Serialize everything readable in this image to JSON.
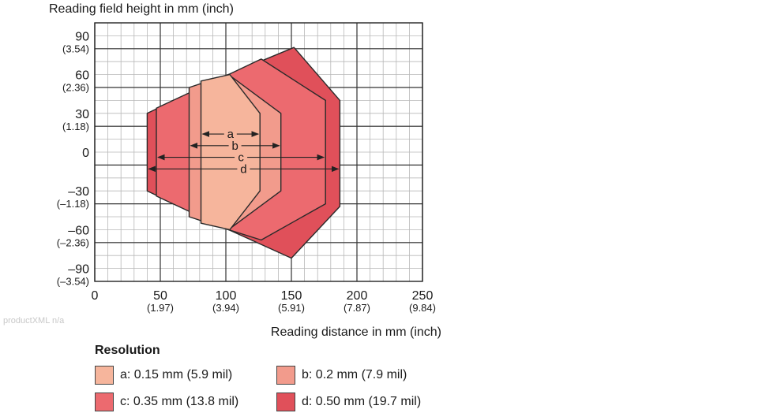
{
  "chart_data": {
    "type": "area",
    "ylabel": "Reading field height in mm (inch)",
    "xlabel": "Reading distance in mm (inch)",
    "xlim": [
      0,
      250
    ],
    "ylim": [
      -100,
      100
    ],
    "grid": true,
    "x_ticks": [
      {
        "value": 0,
        "label": "0",
        "sub": ""
      },
      {
        "value": 50,
        "label": "50",
        "sub": "(1.97)"
      },
      {
        "value": 100,
        "label": "100",
        "sub": "(3.94)"
      },
      {
        "value": 150,
        "label": "150",
        "sub": "(5.91)"
      },
      {
        "value": 200,
        "label": "200",
        "sub": "(7.87)"
      },
      {
        "value": 250,
        "label": "250",
        "sub": "(9.84)"
      }
    ],
    "y_ticks": [
      {
        "value": 90,
        "label": "90",
        "sub": "(3.54)"
      },
      {
        "value": 60,
        "label": "60",
        "sub": "(2.36)"
      },
      {
        "value": 30,
        "label": "30",
        "sub": "(1.18)"
      },
      {
        "value": 0,
        "label": "0",
        "sub": ""
      },
      {
        "value": -30,
        "label": "–30",
        "sub": "(–1.18)"
      },
      {
        "value": -60,
        "label": "–60",
        "sub": "(–2.36)"
      },
      {
        "value": -90,
        "label": "–90",
        "sub": "(–3.54)"
      }
    ],
    "series": [
      {
        "name": "d",
        "color": "#e0505a",
        "points": [
          [
            40,
            30
          ],
          [
            40,
            -30
          ],
          [
            102,
            -60
          ],
          [
            150,
            -82
          ],
          [
            187,
            -42
          ],
          [
            187,
            40
          ],
          [
            152,
            81
          ],
          [
            102,
            60
          ]
        ],
        "arrow": {
          "y": -13,
          "x0": 40,
          "x1": 187
        }
      },
      {
        "name": "c",
        "color": "#ec6a6f",
        "points": [
          [
            47,
            34
          ],
          [
            47,
            -34
          ],
          [
            102,
            -60
          ],
          [
            127,
            -68
          ],
          [
            176,
            -40
          ],
          [
            176,
            40
          ],
          [
            127,
            72
          ],
          [
            102,
            60
          ]
        ],
        "arrow": {
          "y": -4,
          "x0": 47,
          "x1": 176
        }
      },
      {
        "name": "b",
        "color": "#f29b8c",
        "points": [
          [
            72,
            50
          ],
          [
            72,
            -50
          ],
          [
            102,
            -60
          ],
          [
            142,
            -30
          ],
          [
            142,
            30
          ],
          [
            102,
            60
          ]
        ],
        "arrow": {
          "y": 5,
          "x0": 72,
          "x1": 142
        }
      },
      {
        "name": "a",
        "color": "#f6b59c",
        "points": [
          [
            81,
            55
          ],
          [
            81,
            -55
          ],
          [
            103,
            -60
          ],
          [
            126,
            -30
          ],
          [
            126,
            30
          ],
          [
            103,
            60
          ]
        ],
        "arrow": {
          "y": 14,
          "x0": 81,
          "x1": 126
        }
      }
    ]
  },
  "legend": {
    "title": "Resolution",
    "items": [
      {
        "key": "a",
        "text": "a: 0.15 mm (5.9 mil)",
        "color": "#f6b59c"
      },
      {
        "key": "b",
        "text": "b: 0.2 mm (7.9 mil)",
        "color": "#f29b8c"
      },
      {
        "key": "c",
        "text": "c: 0.35 mm (13.8 mil)",
        "color": "#ec6a6f"
      },
      {
        "key": "d",
        "text": "d: 0.50 mm (19.7 mil)",
        "color": "#e0505a"
      }
    ]
  },
  "watermark": "productXML n/a"
}
